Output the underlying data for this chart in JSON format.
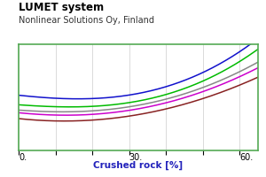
{
  "title": "LUMET system",
  "subtitle": "Nonlinear Solutions Oy, Finland",
  "xlabel": "Crushed rock [%]",
  "xlabel_color": "#2222bb",
  "x_ticks": [
    0,
    30,
    60
  ],
  "x_tick_labels": [
    "0.",
    "30.",
    "60."
  ],
  "xlim": [
    0,
    65
  ],
  "ylim": [
    0,
    1
  ],
  "background_color": "#ffffff",
  "plot_bg_color": "#ffffff",
  "border_color": "#55aa55",
  "grid_color": "#cccccc",
  "title_fontsize": 8.5,
  "subtitle_fontsize": 7,
  "curves": [
    {
      "color": "#1111cc",
      "a": 0.52,
      "b": -0.06,
      "c": 2.8
    },
    {
      "color": "#00bb00",
      "a": 0.43,
      "b": -0.04,
      "c": 2.8
    },
    {
      "color": "#888888",
      "a": 0.38,
      "b": -0.04,
      "c": 2.4
    },
    {
      "color": "#cc00cc",
      "a": 0.355,
      "b": -0.055,
      "c": 2.2
    },
    {
      "color": "#882222",
      "a": 0.3,
      "b": -0.06,
      "c": 2.0
    }
  ]
}
